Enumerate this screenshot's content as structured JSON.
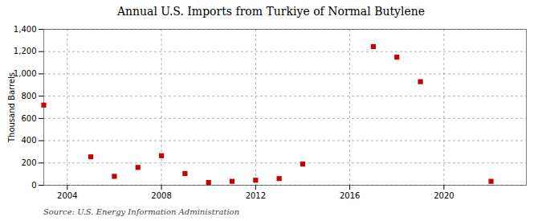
{
  "chart_data": {
    "type": "scatter",
    "title": "Annual U.S. Imports from Turkiye of Normal Butylene",
    "ylabel": "Thousand Barrels",
    "source": "Source: U.S. Energy Information Administration",
    "x": [
      2003,
      2005,
      2006,
      2007,
      2008,
      2009,
      2010,
      2011,
      2012,
      2013,
      2014,
      2017,
      2018,
      2019,
      2022
    ],
    "values": [
      720,
      255,
      80,
      160,
      265,
      105,
      25,
      35,
      45,
      60,
      190,
      1245,
      1150,
      930,
      35
    ],
    "color": "#cc0000",
    "marker": "square",
    "xlim": [
      2003.0,
      2023.5
    ],
    "xticks": [
      2004,
      2008,
      2012,
      2016,
      2020
    ],
    "ylim": [
      0,
      1400
    ],
    "yticks": [
      0,
      200,
      400,
      600,
      800,
      {
        "value": 1000,
        "label": "1,000"
      },
      {
        "value": 1200,
        "label": "1,200"
      },
      {
        "value": 1400,
        "label": "1,400"
      }
    ],
    "grid": true
  }
}
